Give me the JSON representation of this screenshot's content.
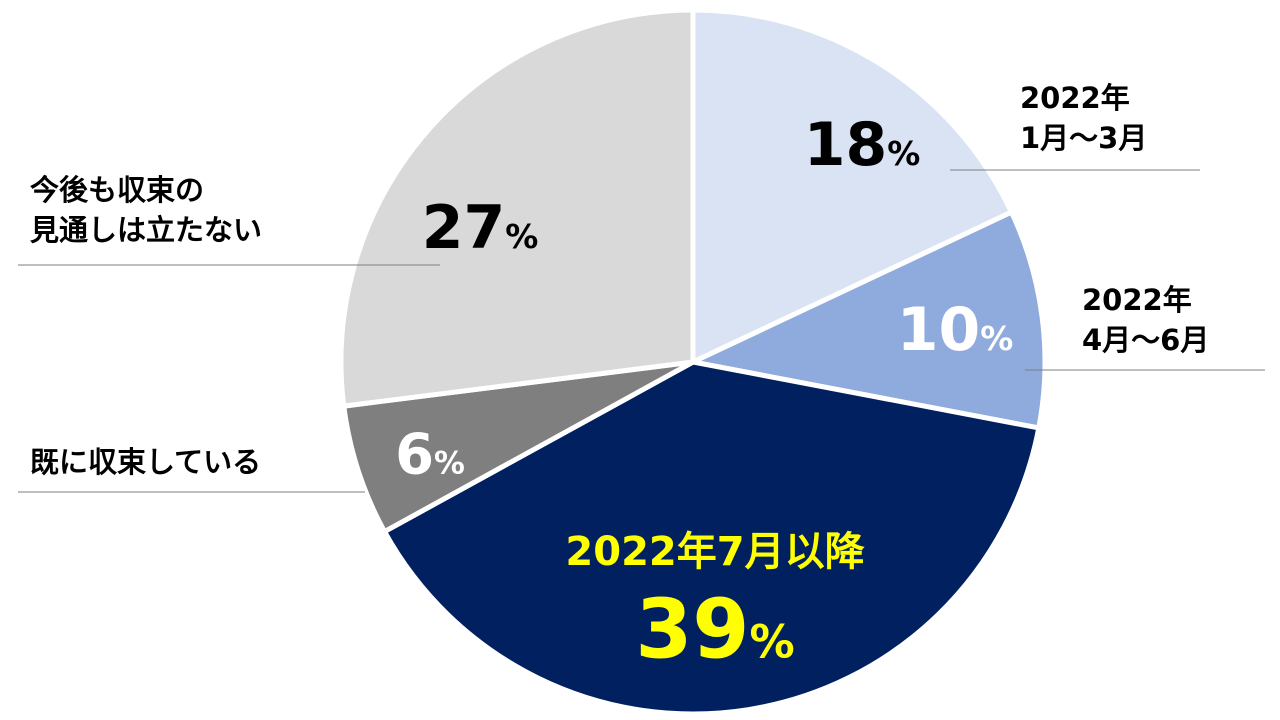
{
  "chart_data": {
    "type": "pie",
    "categories": [
      "2022年\n1月～3月",
      "2022年\n4月～6月",
      "2022年7月以降",
      "既に収束している",
      "今後も収束の\n見通しは立たない"
    ],
    "values": [
      18,
      10,
      39,
      6,
      27
    ],
    "value_labels": [
      "18%",
      "10%",
      "39%",
      "6%",
      "27%"
    ],
    "colors": [
      "#dae3f3",
      "#8faadc",
      "#002060",
      "#7f7f7f",
      "#d9d9d9"
    ],
    "value_label_colors": [
      "#000000",
      "#ffffff",
      "#ffff00",
      "#ffffff",
      "#000000"
    ]
  }
}
